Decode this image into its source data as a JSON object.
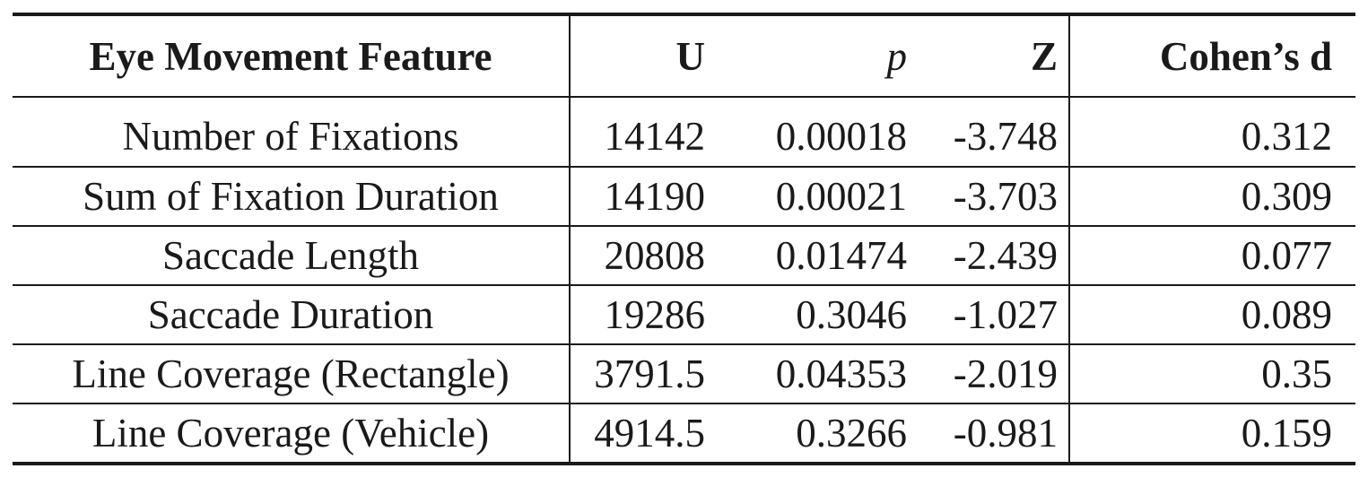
{
  "table": {
    "headers": {
      "feature": "Eye Movement Feature",
      "u": "U",
      "p": "p",
      "z": "Z",
      "d": "Cohen’s d"
    },
    "rows": [
      {
        "feature": "Number of Fixations",
        "u": "14142",
        "p": "0.00018",
        "z": "-3.748",
        "d": "0.312"
      },
      {
        "feature": "Sum of Fixation Duration",
        "u": "14190",
        "p": "0.00021",
        "z": "-3.703",
        "d": "0.309"
      },
      {
        "feature": "Saccade Length",
        "u": "20808",
        "p": "0.01474",
        "z": "-2.439",
        "d": "0.077"
      },
      {
        "feature": "Saccade Duration",
        "u": "19286",
        "p": "0.3046",
        "z": "-1.027",
        "d": "0.089"
      },
      {
        "feature": "Line Coverage (Rectangle)",
        "u": "3791.5",
        "p": "0.04353",
        "z": "-2.019",
        "d": "0.35"
      },
      {
        "feature": "Line Coverage (Vehicle)",
        "u": "4914.5",
        "p": "0.3266",
        "z": "-0.981",
        "d": "0.159"
      }
    ]
  }
}
